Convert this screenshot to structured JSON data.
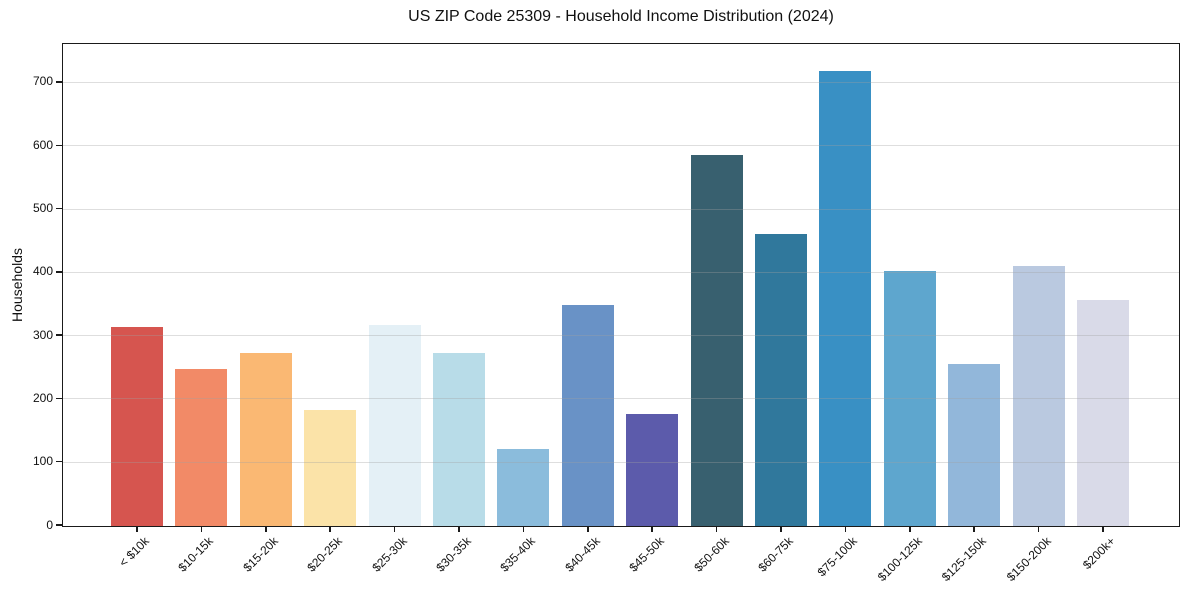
{
  "chart_data": {
    "type": "bar",
    "title": "US ZIP Code 25309 - Household Income Distribution (2024)",
    "xlabel": "",
    "ylabel": "Households",
    "categories": [
      "< $10k",
      "$10-15k",
      "$15-20k",
      "$20-25k",
      "$25-30k",
      "$30-35k",
      "$35-40k",
      "$40-45k",
      "$45-50k",
      "$50-60k",
      "$60-75k",
      "$75-100k",
      "$100-125k",
      "$125-150k",
      "$150-200k",
      "$200k+"
    ],
    "values": [
      315,
      248,
      274,
      183,
      318,
      273,
      121,
      350,
      177,
      586,
      461,
      719,
      403,
      256,
      411,
      357
    ],
    "bar_colors": [
      "#d6554f",
      "#f28a67",
      "#fab873",
      "#fbe3a8",
      "#e4f0f6",
      "#b8dce8",
      "#8bbcdc",
      "#6992c6",
      "#5c5bab",
      "#38606f",
      "#30789c",
      "#3990c4",
      "#5ea6ce",
      "#92b7da",
      "#bac9e0",
      "#d9dae8"
    ],
    "ylim": [
      0,
      760
    ],
    "yticks": [
      0,
      100,
      200,
      300,
      400,
      500,
      600,
      700
    ],
    "grid": "horizontal-light",
    "legend": "none",
    "frame_color": "#1a1a1a",
    "background_color": "#ffffff"
  }
}
